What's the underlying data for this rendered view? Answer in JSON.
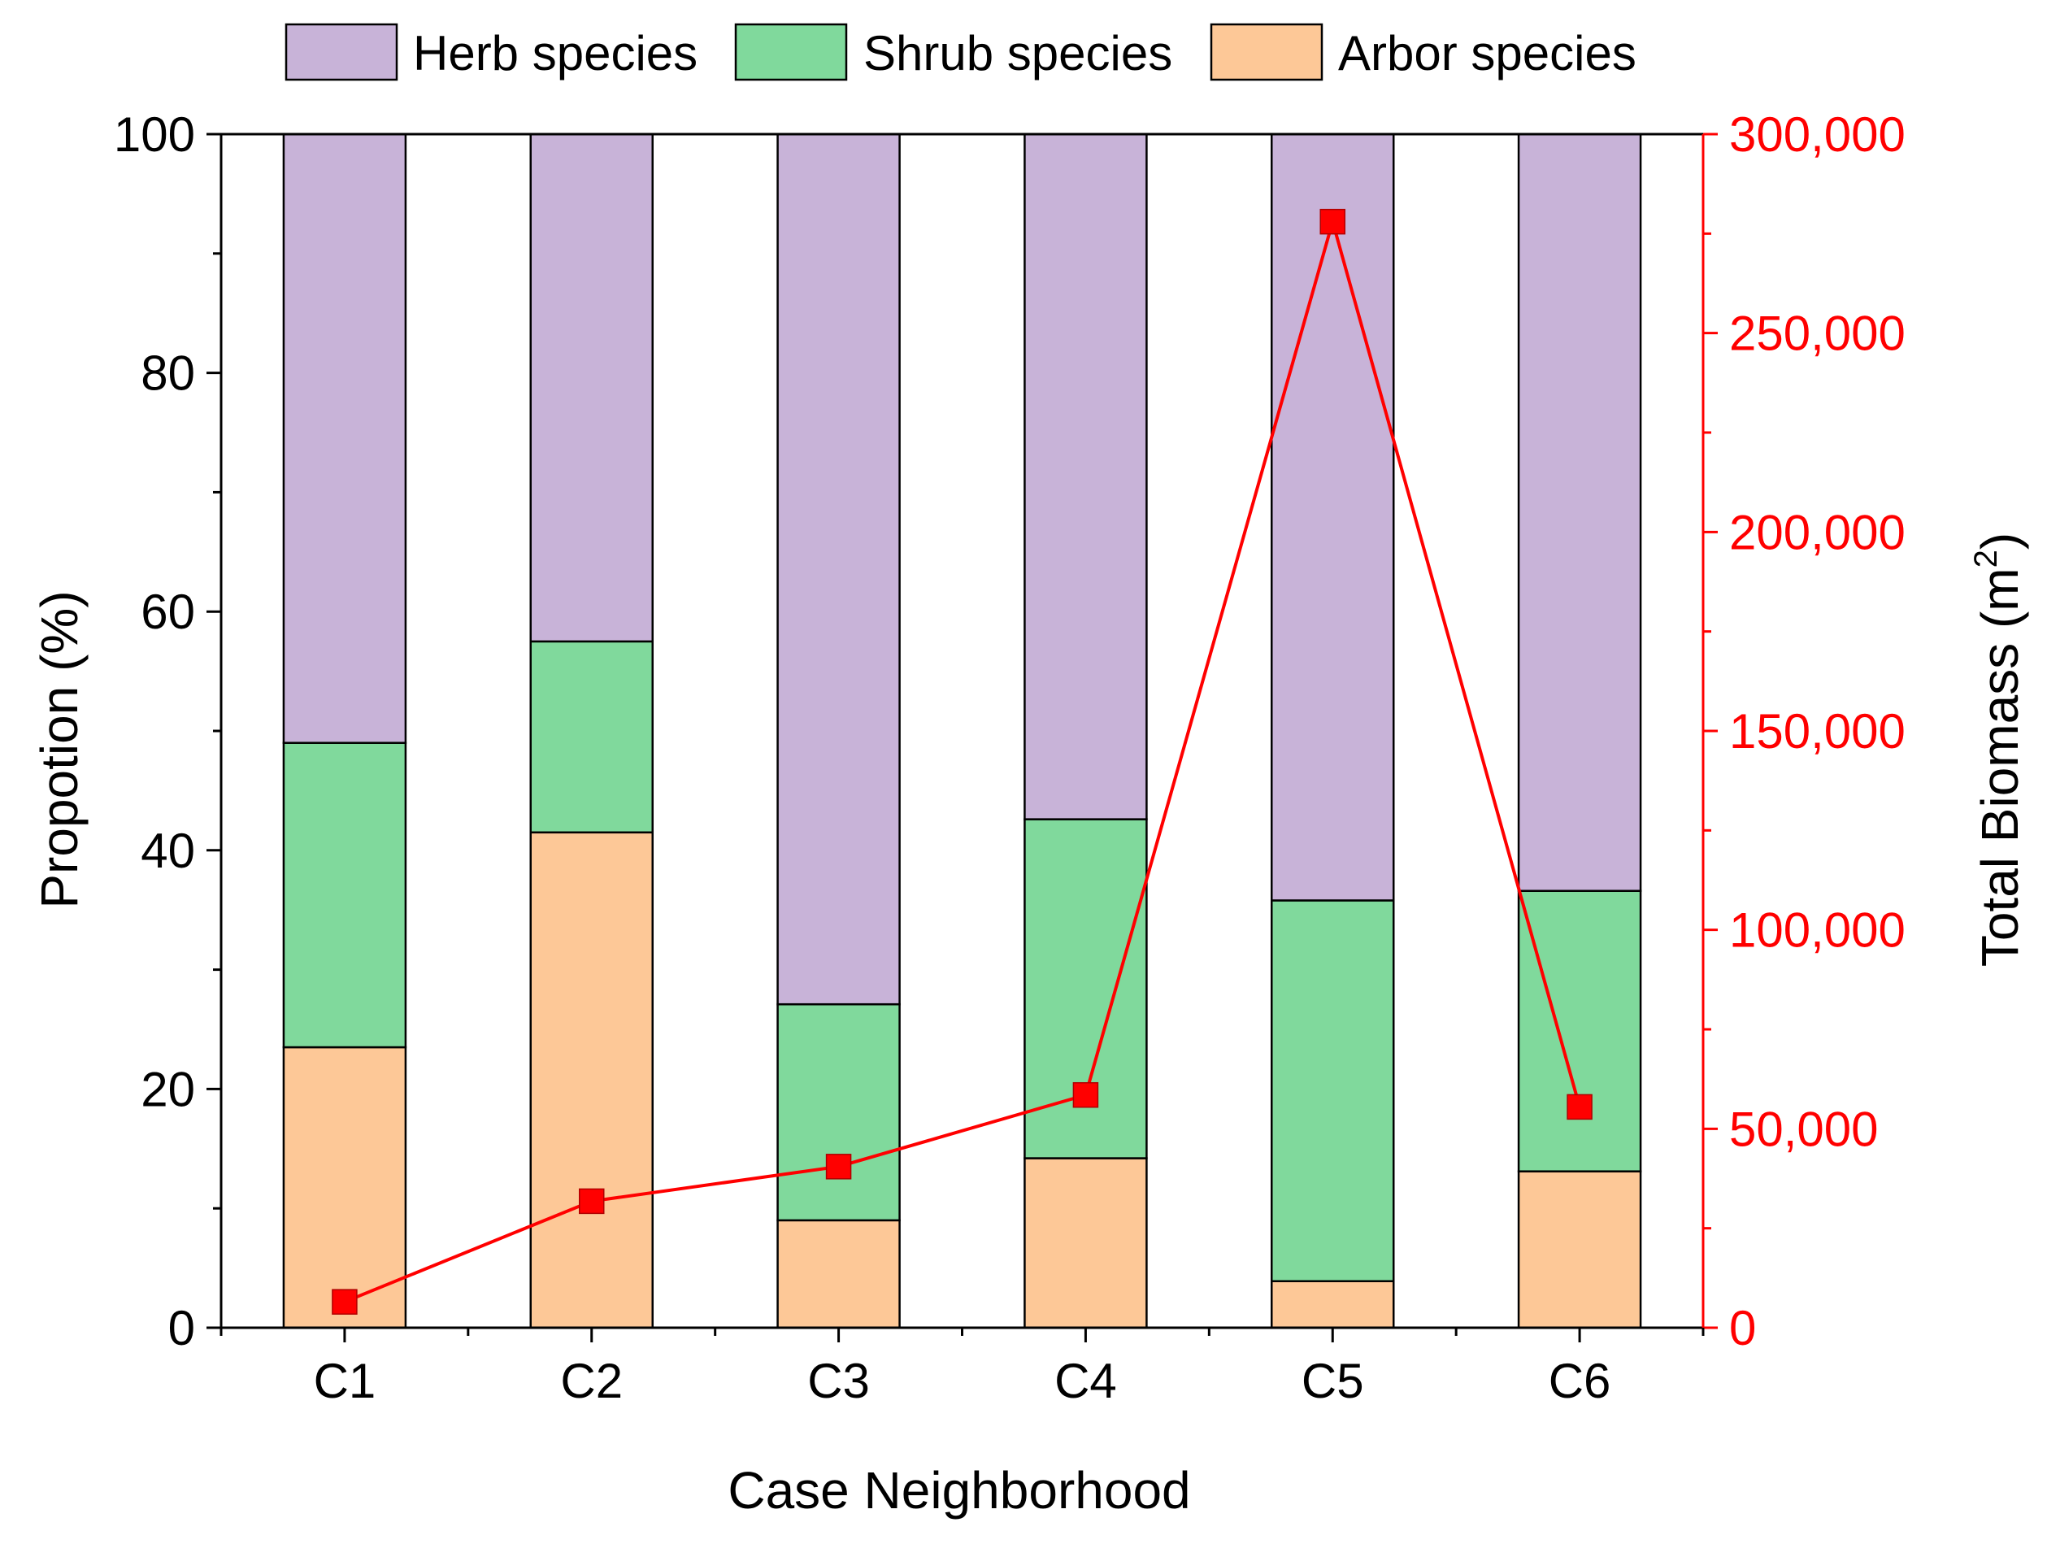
{
  "chart_data": {
    "type": "bar",
    "stacked": true,
    "categories": [
      "C1",
      "C2",
      "C3",
      "C4",
      "C5",
      "C6"
    ],
    "series": [
      {
        "name": "Arbor species",
        "axis": "left",
        "color": "#FDC897",
        "values": [
          23.5,
          41.5,
          9.0,
          14.2,
          3.9,
          13.1
        ]
      },
      {
        "name": "Shrub species",
        "axis": "left",
        "color": "#80D99C",
        "values": [
          25.5,
          16.0,
          18.1,
          28.4,
          31.9,
          23.5
        ]
      },
      {
        "name": "Herb species",
        "axis": "left",
        "color": "#C8B3D8",
        "values": [
          51.0,
          42.5,
          72.9,
          57.4,
          64.2,
          63.4
        ]
      }
    ],
    "line_series": {
      "name": "Total Biomass",
      "axis": "right",
      "type": "line",
      "marker": "square",
      "color": "#FF0000",
      "values": [
        6500,
        31800,
        40500,
        58500,
        278000,
        55500
      ]
    },
    "legend": {
      "placement": "top",
      "entries": [
        "Herb species",
        "Shrub species",
        "Arbor species"
      ]
    },
    "xlabel": "Case Neighborhood",
    "ylabel": "Propotion (%)",
    "y2label_main": "Total Biomass (m",
    "y2label_sup": "2",
    "y2label_close": ")",
    "ylim": [
      0,
      100
    ],
    "yticks": [
      0,
      20,
      40,
      60,
      80,
      100
    ],
    "ytick_labels": [
      "0",
      "20",
      "40",
      "60",
      "80",
      "100"
    ],
    "y2lim": [
      0,
      300000
    ],
    "y2ticks": [
      0,
      50000,
      100000,
      150000,
      200000,
      250000,
      300000
    ],
    "y2tick_labels": [
      "0",
      "50,000",
      "100,000",
      "150,000",
      "200,000",
      "250,000",
      "300,000"
    ],
    "grid": false
  }
}
